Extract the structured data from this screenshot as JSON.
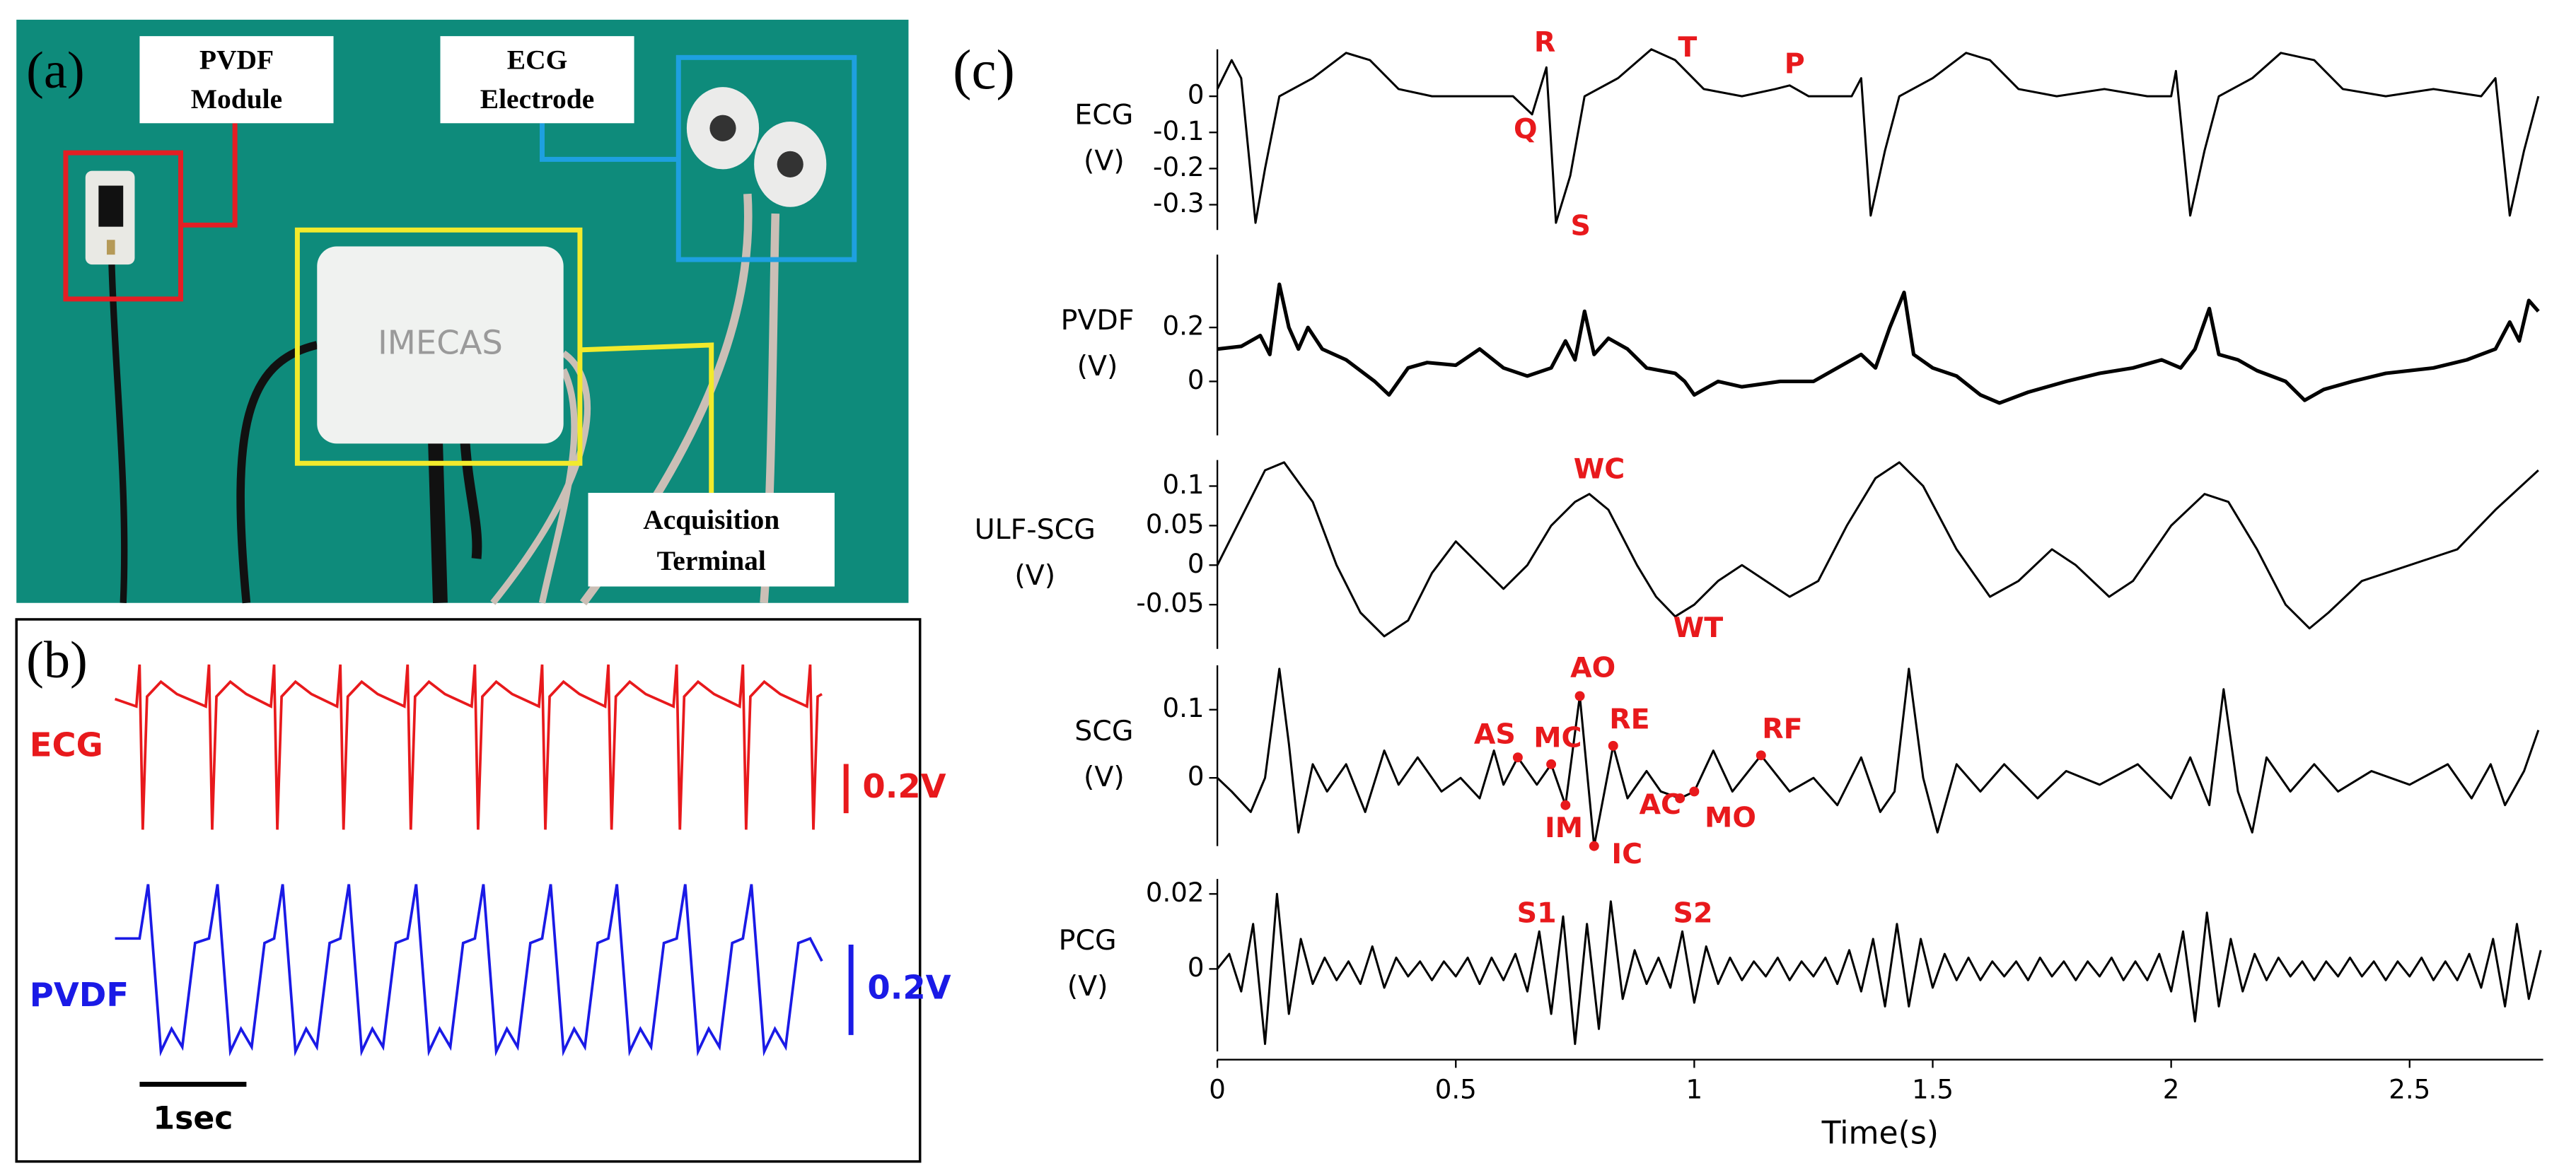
{
  "panel_a": {
    "label": "(a)",
    "pvdf_label": [
      "PVDF",
      "Module"
    ],
    "ecg_label": [
      "ECG",
      "Electrode"
    ],
    "device": "IMECAS",
    "terminal_label": [
      "Acquisition",
      "Terminal"
    ]
  },
  "panel_b": {
    "label": "(b)",
    "series": [
      {
        "name": "ECG",
        "color": "#e8191c",
        "scale_bar": 0.2,
        "scale_label": "0.2V",
        "x": [
          0,
          0.2,
          0.23,
          0.26,
          0.3,
          0.43,
          0.58,
          0.85,
          0.88,
          0.91,
          0.95,
          1.08,
          1.23,
          1.46,
          1.49,
          1.52,
          1.56,
          1.69,
          1.84,
          2.08,
          2.11,
          2.14,
          2.18,
          2.31,
          2.46,
          2.71,
          2.74,
          2.77,
          2.81,
          2.94,
          3.09,
          3.34,
          3.37,
          3.4,
          3.44,
          3.57,
          3.72,
          3.97,
          4.0,
          4.03,
          4.07,
          4.2,
          4.35,
          4.59,
          4.62,
          4.65,
          4.69,
          4.82,
          4.97,
          5.23,
          5.26,
          5.29,
          5.33,
          5.46,
          5.61,
          5.85,
          5.88,
          5.91,
          5.95,
          6.08,
          6.23,
          6.48,
          6.51,
          6.54,
          6.58,
          6.62
        ],
        "values": [
          0.03,
          0.0,
          0.17,
          -0.5,
          0.04,
          0.1,
          0.05,
          0.0,
          0.17,
          -0.5,
          0.04,
          0.1,
          0.05,
          0.0,
          0.17,
          -0.5,
          0.04,
          0.1,
          0.05,
          0.0,
          0.17,
          -0.5,
          0.04,
          0.1,
          0.05,
          0.0,
          0.17,
          -0.5,
          0.04,
          0.1,
          0.05,
          0.0,
          0.17,
          -0.5,
          0.04,
          0.1,
          0.05,
          0.0,
          0.17,
          -0.5,
          0.04,
          0.1,
          0.05,
          0.0,
          0.17,
          -0.5,
          0.04,
          0.1,
          0.05,
          0.0,
          0.17,
          -0.5,
          0.04,
          0.1,
          0.05,
          0.0,
          0.17,
          -0.5,
          0.04,
          0.1,
          0.05,
          0.0,
          0.17,
          -0.5,
          0.04,
          0.05
        ]
      },
      {
        "name": "PVDF",
        "color": "#1a1ae6",
        "scale_bar": 0.2,
        "scale_label": "0.2V",
        "x": [
          0,
          0.23,
          0.31,
          0.43,
          0.53,
          0.63,
          0.75,
          0.88,
          0.96,
          1.08,
          1.18,
          1.28,
          1.4,
          1.49,
          1.57,
          1.69,
          1.79,
          1.89,
          2.01,
          2.11,
          2.19,
          2.31,
          2.41,
          2.51,
          2.63,
          2.74,
          2.82,
          2.94,
          3.04,
          3.14,
          3.26,
          3.37,
          3.45,
          3.57,
          3.67,
          3.77,
          3.89,
          4.0,
          4.08,
          4.2,
          4.3,
          4.4,
          4.52,
          4.62,
          4.7,
          4.82,
          4.92,
          5.02,
          5.14,
          5.26,
          5.34,
          5.46,
          5.56,
          5.66,
          5.78,
          5.88,
          5.96,
          6.08,
          6.18,
          6.28,
          6.4,
          6.51,
          6.62
        ],
        "values": [
          0.05,
          0.05,
          0.17,
          -0.2,
          -0.15,
          -0.19,
          0.04,
          0.05,
          0.17,
          -0.2,
          -0.15,
          -0.19,
          0.04,
          0.05,
          0.17,
          -0.2,
          -0.15,
          -0.19,
          0.04,
          0.05,
          0.17,
          -0.2,
          -0.15,
          -0.19,
          0.04,
          0.05,
          0.17,
          -0.2,
          -0.15,
          -0.19,
          0.04,
          0.05,
          0.17,
          -0.2,
          -0.15,
          -0.19,
          0.04,
          0.05,
          0.17,
          -0.2,
          -0.15,
          -0.19,
          0.04,
          0.05,
          0.17,
          -0.2,
          -0.15,
          -0.19,
          0.04,
          0.05,
          0.17,
          -0.2,
          -0.15,
          -0.19,
          0.04,
          0.05,
          0.17,
          -0.2,
          -0.15,
          -0.19,
          0.04,
          0.05,
          0.0
        ]
      }
    ],
    "time_bar": 1,
    "time_label": "1sec"
  },
  "chart_data": {
    "type": "line",
    "label": "(c)",
    "xlabel": "Time(s)",
    "xlim": [
      0,
      2.78
    ],
    "xticks": [
      0,
      0.5,
      1,
      1.5,
      2,
      2.5
    ],
    "annotation_color": "#e8191c",
    "subplots": [
      {
        "ylabel": [
          "ECG",
          "(V)"
        ],
        "color": "#000000",
        "ylim": [
          -0.37,
          0.13
        ],
        "yticks": [
          0,
          -0.1,
          -0.2,
          -0.3
        ],
        "x": [
          0,
          0.03,
          0.05,
          0.08,
          0.1,
          0.13,
          0.2,
          0.27,
          0.32,
          0.38,
          0.45,
          0.55,
          0.62,
          0.66,
          0.69,
          0.71,
          0.74,
          0.77,
          0.84,
          0.91,
          0.96,
          1.02,
          1.1,
          1.17,
          1.2,
          1.24,
          1.33,
          1.35,
          1.37,
          1.4,
          1.43,
          1.5,
          1.57,
          1.62,
          1.68,
          1.76,
          1.86,
          1.95,
          2.0,
          2.01,
          2.04,
          2.07,
          2.1,
          2.17,
          2.23,
          2.3,
          2.36,
          2.45,
          2.55,
          2.65,
          2.68,
          2.71,
          2.74,
          2.77
        ],
        "values": [
          0.02,
          0.1,
          0.05,
          -0.35,
          -0.2,
          0.0,
          0.05,
          0.12,
          0.1,
          0.02,
          0.0,
          0.0,
          0.0,
          -0.05,
          0.08,
          -0.35,
          -0.22,
          0.0,
          0.05,
          0.13,
          0.1,
          0.02,
          0.0,
          0.02,
          0.03,
          0.0,
          0.0,
          0.05,
          -0.33,
          -0.15,
          0.0,
          0.05,
          0.12,
          0.1,
          0.02,
          0.0,
          0.02,
          0.0,
          0.0,
          0.07,
          -0.33,
          -0.15,
          0.0,
          0.05,
          0.12,
          0.1,
          0.02,
          0.0,
          0.02,
          0.0,
          0.05,
          -0.33,
          -0.15,
          0.0
        ],
        "annotations": [
          {
            "label": "R",
            "x": 0.69,
            "y": 0.08
          },
          {
            "label": "Q",
            "x": 0.66,
            "y": -0.05
          },
          {
            "label": "S",
            "x": 0.71,
            "y": -0.35
          },
          {
            "label": "T",
            "x": 0.91,
            "y": 0.13
          },
          {
            "label": "P",
            "x": 1.2,
            "y": 0.03
          }
        ]
      },
      {
        "ylabel": [
          "PVDF",
          "(V)"
        ],
        "color": "#000000",
        "ylim": [
          -0.2,
          0.47
        ],
        "yticks": [
          0,
          0.2
        ],
        "x": [
          0,
          0.05,
          0.09,
          0.11,
          0.13,
          0.15,
          0.17,
          0.19,
          0.22,
          0.27,
          0.33,
          0.36,
          0.4,
          0.44,
          0.5,
          0.55,
          0.6,
          0.65,
          0.7,
          0.73,
          0.75,
          0.77,
          0.79,
          0.82,
          0.86,
          0.9,
          0.96,
          0.98,
          1.0,
          1.05,
          1.1,
          1.18,
          1.25,
          1.3,
          1.35,
          1.38,
          1.41,
          1.44,
          1.46,
          1.5,
          1.55,
          1.6,
          1.64,
          1.7,
          1.78,
          1.85,
          1.92,
          1.98,
          2.02,
          2.05,
          2.08,
          2.1,
          2.14,
          2.18,
          2.24,
          2.28,
          2.32,
          2.38,
          2.45,
          2.55,
          2.62,
          2.68,
          2.71,
          2.73,
          2.75,
          2.77
        ],
        "values": [
          0.12,
          0.13,
          0.17,
          0.1,
          0.36,
          0.2,
          0.12,
          0.2,
          0.12,
          0.08,
          0.0,
          -0.05,
          0.05,
          0.07,
          0.06,
          0.12,
          0.05,
          0.02,
          0.05,
          0.15,
          0.08,
          0.26,
          0.1,
          0.16,
          0.12,
          0.05,
          0.03,
          0.0,
          -0.05,
          0.0,
          -0.02,
          0.0,
          0.0,
          0.05,
          0.1,
          0.05,
          0.2,
          0.33,
          0.1,
          0.05,
          0.02,
          -0.05,
          -0.08,
          -0.04,
          0.0,
          0.03,
          0.05,
          0.08,
          0.05,
          0.12,
          0.27,
          0.1,
          0.08,
          0.04,
          0.0,
          -0.07,
          -0.03,
          0.0,
          0.03,
          0.05,
          0.08,
          0.12,
          0.22,
          0.15,
          0.3,
          0.26
        ]
      },
      {
        "ylabel": [
          "ULF-SCG",
          "(V)"
        ],
        "color": "#000000",
        "ylim": [
          -0.106,
          0.133
        ],
        "yticks": [
          -0.05,
          0,
          0.05,
          0.1
        ],
        "x": [
          0,
          0.05,
          0.1,
          0.14,
          0.2,
          0.25,
          0.3,
          0.35,
          0.4,
          0.45,
          0.5,
          0.55,
          0.6,
          0.65,
          0.7,
          0.75,
          0.78,
          0.82,
          0.88,
          0.92,
          0.96,
          1.0,
          1.05,
          1.1,
          1.15,
          1.2,
          1.26,
          1.32,
          1.38,
          1.43,
          1.48,
          1.55,
          1.62,
          1.68,
          1.75,
          1.8,
          1.87,
          1.92,
          2.0,
          2.07,
          2.12,
          2.18,
          2.24,
          2.29,
          2.33,
          2.4,
          2.5,
          2.6,
          2.68,
          2.77
        ],
        "values": [
          0.0,
          0.06,
          0.12,
          0.13,
          0.08,
          0.0,
          -0.06,
          -0.09,
          -0.07,
          -0.01,
          0.03,
          0.0,
          -0.03,
          0.0,
          0.05,
          0.08,
          0.09,
          0.07,
          0.0,
          -0.04,
          -0.065,
          -0.05,
          -0.02,
          0.0,
          -0.02,
          -0.04,
          -0.02,
          0.05,
          0.11,
          0.13,
          0.1,
          0.02,
          -0.04,
          -0.02,
          0.02,
          0.0,
          -0.04,
          -0.02,
          0.05,
          0.09,
          0.08,
          0.02,
          -0.05,
          -0.08,
          -0.06,
          -0.02,
          0.0,
          0.02,
          0.07,
          0.12
        ],
        "annotations": [
          {
            "label": "WC",
            "x": 0.78,
            "y": 0.09
          },
          {
            "label": "WT",
            "x": 0.96,
            "y": -0.065
          }
        ]
      },
      {
        "ylabel": [
          "SCG",
          "(V)"
        ],
        "color": "#000000",
        "ylim": [
          -0.1,
          0.165
        ],
        "yticks": [
          0,
          0.1
        ],
        "markers": true,
        "x": [
          0,
          0.03,
          0.07,
          0.1,
          0.13,
          0.15,
          0.17,
          0.2,
          0.23,
          0.27,
          0.31,
          0.35,
          0.38,
          0.42,
          0.47,
          0.51,
          0.55,
          0.58,
          0.6,
          0.63,
          0.67,
          0.7,
          0.73,
          0.76,
          0.79,
          0.83,
          0.86,
          0.9,
          0.93,
          0.97,
          1.0,
          1.04,
          1.08,
          1.14,
          1.2,
          1.25,
          1.3,
          1.35,
          1.39,
          1.42,
          1.45,
          1.48,
          1.51,
          1.55,
          1.6,
          1.65,
          1.72,
          1.78,
          1.85,
          1.93,
          2.0,
          2.04,
          2.08,
          2.11,
          2.14,
          2.17,
          2.2,
          2.25,
          2.3,
          2.35,
          2.42,
          2.5,
          2.58,
          2.63,
          2.67,
          2.7,
          2.74,
          2.77
        ],
        "values": [
          0.0,
          -0.02,
          -0.05,
          0.0,
          0.16,
          0.05,
          -0.08,
          0.02,
          -0.02,
          0.02,
          -0.05,
          0.04,
          -0.01,
          0.03,
          -0.02,
          0.0,
          -0.03,
          0.04,
          -0.01,
          0.03,
          -0.01,
          0.02,
          -0.04,
          0.12,
          -0.1,
          0.047,
          -0.03,
          0.01,
          -0.02,
          -0.03,
          -0.02,
          0.04,
          -0.02,
          0.033,
          -0.02,
          0.0,
          -0.04,
          0.03,
          -0.05,
          -0.02,
          0.16,
          0.0,
          -0.08,
          0.02,
          -0.02,
          0.02,
          -0.03,
          0.01,
          -0.01,
          0.02,
          -0.03,
          0.03,
          -0.04,
          0.13,
          -0.02,
          -0.08,
          0.03,
          -0.02,
          0.02,
          -0.02,
          0.01,
          -0.01,
          0.02,
          -0.03,
          0.02,
          -0.04,
          0.01,
          0.07
        ],
        "annotations": [
          {
            "label": "AS",
            "x": 0.63,
            "y": 0.03
          },
          {
            "label": "MC",
            "x": 0.7,
            "y": 0.02
          },
          {
            "label": "IM",
            "x": 0.73,
            "y": -0.04
          },
          {
            "label": "AO",
            "x": 0.76,
            "y": 0.12
          },
          {
            "label": "IC",
            "x": 0.79,
            "y": -0.1
          },
          {
            "label": "RE",
            "x": 0.83,
            "y": 0.047
          },
          {
            "label": "AC",
            "x": 0.97,
            "y": -0.03
          },
          {
            "label": "MO",
            "x": 1.0,
            "y": -0.02
          },
          {
            "label": "RF",
            "x": 1.14,
            "y": 0.033
          }
        ]
      },
      {
        "ylabel": [
          "PCG",
          "(V)"
        ],
        "color": "#000000",
        "ylim": [
          -0.022,
          0.024
        ],
        "yticks": [
          0,
          0.02
        ],
        "x": [
          0,
          0.025,
          0.05,
          0.075,
          0.1,
          0.125,
          0.15,
          0.175,
          0.2,
          0.225,
          0.25,
          0.275,
          0.3,
          0.325,
          0.35,
          0.375,
          0.4,
          0.425,
          0.45,
          0.475,
          0.5,
          0.525,
          0.55,
          0.575,
          0.6,
          0.625,
          0.65,
          0.675,
          0.7,
          0.725,
          0.75,
          0.775,
          0.8,
          0.825,
          0.85,
          0.875,
          0.9,
          0.925,
          0.95,
          0.975,
          1.0,
          1.025,
          1.05,
          1.075,
          1.1,
          1.125,
          1.15,
          1.175,
          1.2,
          1.225,
          1.25,
          1.275,
          1.3,
          1.325,
          1.35,
          1.375,
          1.4,
          1.425,
          1.45,
          1.475,
          1.5,
          1.525,
          1.55,
          1.575,
          1.6,
          1.625,
          1.65,
          1.675,
          1.7,
          1.725,
          1.75,
          1.775,
          1.8,
          1.825,
          1.85,
          1.875,
          1.9,
          1.925,
          1.95,
          1.975,
          2.0,
          2.025,
          2.05,
          2.075,
          2.1,
          2.125,
          2.15,
          2.175,
          2.2,
          2.225,
          2.25,
          2.275,
          2.3,
          2.325,
          2.35,
          2.375,
          2.4,
          2.425,
          2.45,
          2.475,
          2.5,
          2.525,
          2.55,
          2.575,
          2.6,
          2.625,
          2.65,
          2.675,
          2.7,
          2.725,
          2.75,
          2.775
        ],
        "values": [
          0,
          0.004,
          -0.006,
          0.012,
          -0.02,
          0.02,
          -0.012,
          0.008,
          -0.004,
          0.003,
          -0.003,
          0.002,
          -0.004,
          0.006,
          -0.005,
          0.003,
          -0.002,
          0.002,
          -0.003,
          0.002,
          -0.002,
          0.003,
          -0.004,
          0.003,
          -0.003,
          0.004,
          -0.006,
          0.01,
          -0.012,
          0.014,
          -0.02,
          0.012,
          -0.016,
          0.018,
          -0.008,
          0.005,
          -0.004,
          0.003,
          -0.005,
          0.01,
          -0.009,
          0.006,
          -0.004,
          0.003,
          -0.003,
          0.002,
          -0.002,
          0.003,
          -0.003,
          0.002,
          -0.002,
          0.003,
          -0.004,
          0.005,
          -0.006,
          0.008,
          -0.01,
          0.012,
          -0.01,
          0.008,
          -0.005,
          0.004,
          -0.003,
          0.003,
          -0.003,
          0.002,
          -0.002,
          0.002,
          -0.003,
          0.003,
          -0.002,
          0.002,
          -0.003,
          0.002,
          -0.002,
          0.003,
          -0.003,
          0.002,
          -0.003,
          0.004,
          -0.006,
          0.01,
          -0.014,
          0.015,
          -0.01,
          0.008,
          -0.006,
          0.004,
          -0.003,
          0.003,
          -0.002,
          0.002,
          -0.003,
          0.002,
          -0.002,
          0.003,
          -0.002,
          0.002,
          -0.003,
          0.002,
          -0.002,
          0.003,
          -0.003,
          0.002,
          -0.003,
          0.004,
          -0.005,
          0.008,
          -0.01,
          0.012,
          -0.008,
          0.005
        ],
        "annotations": [
          {
            "label": "S1",
            "x": 0.68,
            "y": 0.01
          },
          {
            "label": "S2",
            "x": 0.98,
            "y": 0.01
          }
        ]
      }
    ]
  }
}
